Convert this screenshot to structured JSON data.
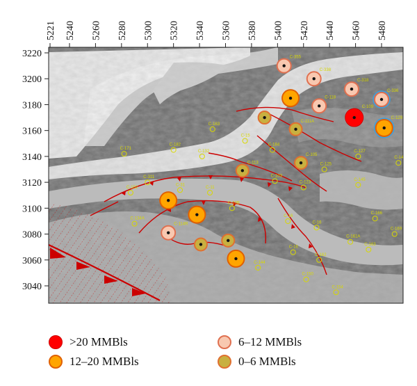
{
  "axes": {
    "x_ticks": [
      "5221",
      "5240",
      "5260",
      "5280",
      "5300",
      "5320",
      "5340",
      "5360",
      "5380",
      "5400",
      "5420",
      "5440",
      "5460",
      "5480"
    ],
    "y_ticks": [
      "3220",
      "3200",
      "3180",
      "3160",
      "3140",
      "3120",
      "3100",
      "3080",
      "3060",
      "3040"
    ]
  },
  "colors": {
    "gt20": "#ff0000",
    "r12_20": "#ffa500",
    "r6_12": "#f8c8b0",
    "r0_6": "#c8b040",
    "fault": "#cc0000",
    "well_label": "#d8d800"
  },
  "wells": [
    {
      "label": "C-355",
      "x": 5405,
      "y": 3210,
      "class": "6-12"
    },
    {
      "label": "C-338",
      "x": 5428,
      "y": 3200,
      "class": "6-12"
    },
    {
      "label": "C-318",
      "x": 5457,
      "y": 3192,
      "class": "6-12"
    },
    {
      "label": "C-336",
      "x": 5480,
      "y": 3184,
      "class": "6-12"
    },
    {
      "label": "",
      "x": 5410,
      "y": 3185,
      "class": "12-20"
    },
    {
      "label": "C-118",
      "x": 5432,
      "y": 3179,
      "class": "6-12"
    },
    {
      "label": "C-109",
      "x": 5459,
      "y": 3170,
      "class": "gt20"
    },
    {
      "label": "C-129",
      "x": 5482,
      "y": 3162,
      "class": "12-20"
    },
    {
      "label": "",
      "x": 5390,
      "y": 3170,
      "class": "0-6"
    },
    {
      "label": "C-111A",
      "x": 5414,
      "y": 3161,
      "class": "0-6"
    },
    {
      "label": "C-105",
      "x": 5418,
      "y": 3135,
      "class": "0-6"
    },
    {
      "label": "C-113",
      "x": 5373,
      "y": 3129,
      "class": "0-6"
    },
    {
      "label": "",
      "x": 5316,
      "y": 3106,
      "class": "12-20"
    },
    {
      "label": "",
      "x": 5338,
      "y": 3095,
      "class": "12-20"
    },
    {
      "label": "C-114R",
      "x": 5316,
      "y": 3081,
      "class": "6-12"
    },
    {
      "label": "",
      "x": 5341,
      "y": 3072,
      "class": "0-6"
    },
    {
      "label": "",
      "x": 5362,
      "y": 3075,
      "class": "0-6"
    },
    {
      "label": "",
      "x": 5368,
      "y": 3061,
      "class": "12-20"
    }
  ],
  "minor_wells": [
    {
      "label": "C-171",
      "x": 5282,
      "y": 3142
    },
    {
      "label": "C-163",
      "x": 5350,
      "y": 3161
    },
    {
      "label": "C-15",
      "x": 5375,
      "y": 3152
    },
    {
      "label": "C-182",
      "x": 5320,
      "y": 3145
    },
    {
      "label": "C-132",
      "x": 5342,
      "y": 3140
    },
    {
      "label": "C-184",
      "x": 5396,
      "y": 3145
    },
    {
      "label": "C-103",
      "x": 5398,
      "y": 3121
    },
    {
      "label": "C-123",
      "x": 5420,
      "y": 3116
    },
    {
      "label": "C-125",
      "x": 5436,
      "y": 3130
    },
    {
      "label": "C-127",
      "x": 5462,
      "y": 3140
    },
    {
      "label": "C-145",
      "x": 5462,
      "y": 3118
    },
    {
      "label": "C-147",
      "x": 5493,
      "y": 3135
    },
    {
      "label": "C-31",
      "x": 5325,
      "y": 3114
    },
    {
      "label": "C-11",
      "x": 5348,
      "y": 3112
    },
    {
      "label": "C-10B",
      "x": 5365,
      "y": 3100
    },
    {
      "label": "C-16",
      "x": 5408,
      "y": 3090
    },
    {
      "label": "C-16",
      "x": 5430,
      "y": 3085
    },
    {
      "label": "C-161A",
      "x": 5456,
      "y": 3074
    },
    {
      "label": "C-162",
      "x": 5432,
      "y": 3060
    },
    {
      "label": "C-16",
      "x": 5412,
      "y": 3066
    },
    {
      "label": "C-144",
      "x": 5385,
      "y": 3054
    },
    {
      "label": "C-150",
      "x": 5422,
      "y": 3045
    },
    {
      "label": "C-154",
      "x": 5445,
      "y": 3035
    },
    {
      "label": "C-163",
      "x": 5470,
      "y": 3068
    },
    {
      "label": "C-169",
      "x": 5490,
      "y": 3080
    },
    {
      "label": "C-166",
      "x": 5475,
      "y": 3092
    },
    {
      "label": "C-152",
      "x": 5287,
      "y": 3112
    },
    {
      "label": "C-311",
      "x": 5300,
      "y": 3120
    },
    {
      "label": "C-134A",
      "x": 5290,
      "y": 3088
    }
  ],
  "legend": [
    {
      "key": "gt20",
      "label": ">20 MMBls"
    },
    {
      "key": "r12_20",
      "label": "12–20 MMBls"
    },
    {
      "key": "r6_12",
      "label": "6–12 MMBls"
    },
    {
      "key": "r0_6",
      "label": "0–6 MMBls"
    }
  ]
}
